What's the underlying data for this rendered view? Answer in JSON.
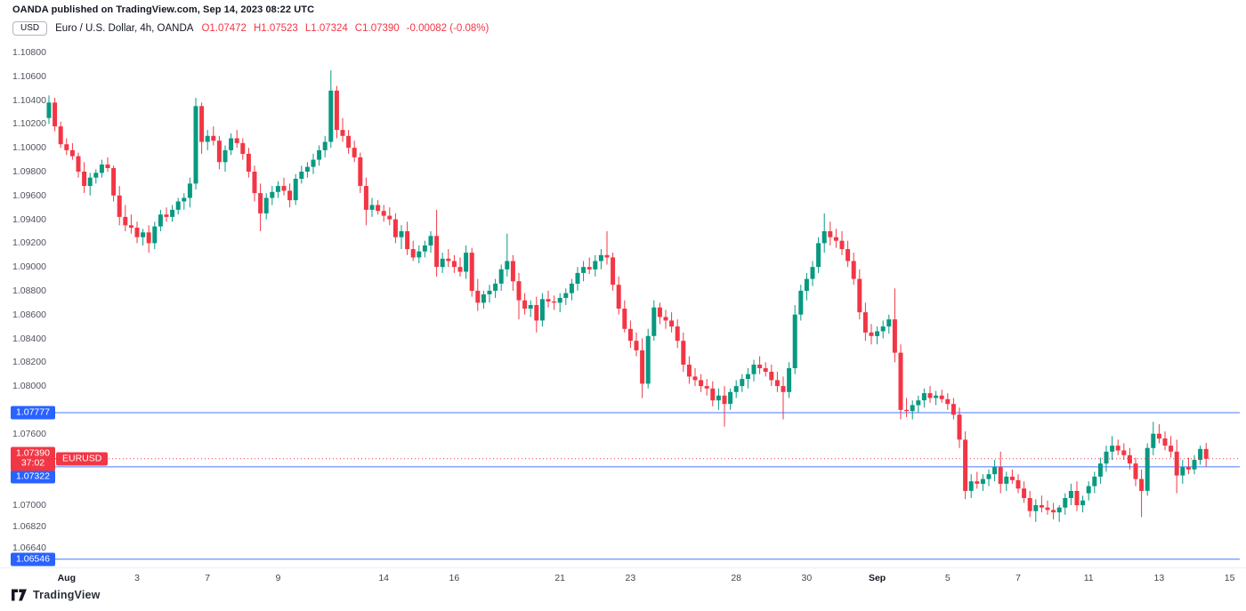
{
  "header": {
    "attribution": "OANDA published on TradingView.com, Sep 14, 2023 08:22 UTC",
    "currency": "USD",
    "legend": {
      "title": "Euro / U.S. Dollar, 4h, OANDA",
      "open": "O1.07472",
      "high": "H1.07523",
      "low": "L1.07324",
      "close": "C1.07390",
      "change": "-0.00082 (-0.08%)"
    }
  },
  "price_scale": {
    "ticks": [
      "1.10800",
      "1.10600",
      "1.10400",
      "1.10200",
      "1.10000",
      "1.09800",
      "1.09600",
      "1.09400",
      "1.09200",
      "1.09000",
      "1.08800",
      "1.08600",
      "1.08400",
      "1.08200",
      "1.08000",
      "1.07600",
      "1.07000",
      "1.06820",
      "1.06640"
    ],
    "badges": [
      {
        "text": "1.07777",
        "price": 1.07777,
        "color": "#2962FF"
      },
      {
        "text": "1.07322",
        "price": 1.07322,
        "color": "#2962FF"
      },
      {
        "text": "1.06546",
        "price": 1.06546,
        "color": "#2962FF"
      }
    ],
    "current_price": {
      "text": "1.07390",
      "price": 1.0739,
      "countdown": "37:02",
      "symbol_tag": "EURUSD",
      "color": "#F23645"
    }
  },
  "time_scale": {
    "labels": [
      {
        "text": "Aug",
        "i": 3
      },
      {
        "text": "3",
        "i": 15
      },
      {
        "text": "7",
        "i": 27
      },
      {
        "text": "9",
        "i": 39
      },
      {
        "text": "14",
        "i": 57
      },
      {
        "text": "16",
        "i": 69
      },
      {
        "text": "21",
        "i": 87
      },
      {
        "text": "23",
        "i": 99
      },
      {
        "text": "28",
        "i": 117
      },
      {
        "text": "30",
        "i": 129
      },
      {
        "text": "Sep",
        "i": 141
      },
      {
        "text": "5",
        "i": 153
      },
      {
        "text": "7",
        "i": 165
      },
      {
        "text": "11",
        "i": 177
      },
      {
        "text": "13",
        "i": 189
      },
      {
        "text": "15",
        "i": 201
      }
    ]
  },
  "price_lines": [
    {
      "price": 1.07777,
      "color": "#2962FF",
      "style": "solid"
    },
    {
      "price": 1.07322,
      "color": "#2962FF",
      "style": "solid"
    },
    {
      "price": 1.06546,
      "color": "#2962FF",
      "style": "solid"
    },
    {
      "price": 1.0739,
      "color": "#F23645",
      "style": "dotted"
    }
  ],
  "chart_data": {
    "type": "candlestick",
    "symbol": "EURUSD",
    "description": "Euro / U.S. Dollar",
    "timeframe": "4h",
    "exchange": "OANDA",
    "title": "Euro / U.S. Dollar, 4h, OANDA",
    "ylim": [
      1.06403,
      1.10905
    ],
    "grid": false,
    "colors": {
      "up": "#089981",
      "down": "#F23645"
    },
    "candles": [
      [
        1.1025,
        1.1044,
        1.102,
        1.1038
      ],
      [
        1.1038,
        1.1042,
        1.1014,
        1.1018
      ],
      [
        1.1018,
        1.1022,
        1.1,
        1.1003
      ],
      [
        1.1003,
        1.1008,
        1.0994,
        1.0998
      ],
      [
        1.0998,
        1.1004,
        1.099,
        1.0993
      ],
      [
        1.0993,
        1.0996,
        1.0975,
        1.098
      ],
      [
        1.098,
        1.0988,
        1.0962,
        1.0968
      ],
      [
        1.0968,
        1.0979,
        1.096,
        1.0975
      ],
      [
        1.0975,
        1.0982,
        1.097,
        1.0979
      ],
      [
        1.0979,
        1.099,
        1.0975,
        1.0986
      ],
      [
        1.0986,
        1.0992,
        1.098,
        1.0983
      ],
      [
        1.0983,
        1.0985,
        1.0955,
        1.096
      ],
      [
        1.096,
        1.0968,
        1.0935,
        1.0942
      ],
      [
        1.0942,
        1.0952,
        1.093,
        1.0935
      ],
      [
        1.0935,
        1.0944,
        1.0928,
        1.0933
      ],
      [
        1.0933,
        1.0938,
        1.092,
        1.0925
      ],
      [
        1.0925,
        1.0932,
        1.0918,
        1.0929
      ],
      [
        1.0929,
        1.0935,
        1.0912,
        1.092
      ],
      [
        1.092,
        1.0938,
        1.0915,
        1.0934
      ],
      [
        1.0934,
        1.0948,
        1.093,
        1.0944
      ],
      [
        1.0944,
        1.095,
        1.0938,
        1.0942
      ],
      [
        1.0942,
        1.0952,
        1.0938,
        1.0948
      ],
      [
        1.0948,
        1.0958,
        1.0944,
        1.0955
      ],
      [
        1.0955,
        1.0962,
        1.0948,
        1.0958
      ],
      [
        1.0958,
        1.0975,
        1.095,
        1.097
      ],
      [
        1.097,
        1.1042,
        1.0965,
        1.1035
      ],
      [
        1.1035,
        1.1038,
        1.0995,
        1.1005
      ],
      [
        1.1005,
        1.1015,
        1.0998,
        1.101
      ],
      [
        1.101,
        1.1018,
        1.1002,
        1.1006
      ],
      [
        1.1006,
        1.101,
        1.0982,
        1.0988
      ],
      [
        1.0988,
        1.1002,
        1.098,
        1.0998
      ],
      [
        1.0998,
        1.1012,
        1.0994,
        1.1008
      ],
      [
        1.1008,
        1.1015,
        1.1,
        1.1004
      ],
      [
        1.1004,
        1.1008,
        1.099,
        1.0995
      ],
      [
        1.0995,
        1.1,
        1.0975,
        1.098
      ],
      [
        1.098,
        1.0985,
        1.0955,
        1.0962
      ],
      [
        1.0962,
        1.097,
        1.093,
        1.0945
      ],
      [
        1.0945,
        1.0962,
        1.094,
        1.0958
      ],
      [
        1.0958,
        1.0968,
        1.0952,
        1.0963
      ],
      [
        1.0963,
        1.0972,
        1.0958,
        1.0968
      ],
      [
        1.0968,
        1.0975,
        1.096,
        1.0964
      ],
      [
        1.0964,
        1.097,
        1.095,
        1.0956
      ],
      [
        1.0956,
        1.0978,
        1.0952,
        1.0974
      ],
      [
        1.0974,
        1.0985,
        1.097,
        1.098
      ],
      [
        1.098,
        1.0988,
        1.0975,
        1.0984
      ],
      [
        1.0984,
        1.0995,
        1.0978,
        1.099
      ],
      [
        1.099,
        1.1002,
        1.0985,
        1.0998
      ],
      [
        1.0998,
        1.101,
        1.0992,
        1.1005
      ],
      [
        1.1005,
        1.1065,
        1.1,
        1.1048
      ],
      [
        1.1048,
        1.1052,
        1.1008,
        1.1015
      ],
      [
        1.1015,
        1.1025,
        1.1005,
        1.101
      ],
      [
        1.101,
        1.1015,
        1.0995,
        1.1
      ],
      [
        1.1,
        1.1006,
        1.0988,
        1.0992
      ],
      [
        1.0992,
        1.0996,
        1.0962,
        1.0968
      ],
      [
        1.0968,
        1.0975,
        1.0935,
        1.0948
      ],
      [
        1.0948,
        1.0958,
        1.0942,
        1.0952
      ],
      [
        1.0952,
        1.0956,
        1.0944,
        1.0947
      ],
      [
        1.0947,
        1.0952,
        1.0938,
        1.0943
      ],
      [
        1.0943,
        1.095,
        1.0935,
        1.094
      ],
      [
        1.094,
        1.0945,
        1.092,
        1.0925
      ],
      [
        1.0925,
        1.0935,
        1.0915,
        1.093
      ],
      [
        1.093,
        1.0938,
        1.091,
        1.0915
      ],
      [
        1.0915,
        1.0922,
        1.0905,
        1.0908
      ],
      [
        1.0908,
        1.0918,
        1.0903,
        1.0913
      ],
      [
        1.0913,
        1.0922,
        1.0908,
        1.0918
      ],
      [
        1.0918,
        1.093,
        1.0912,
        1.0926
      ],
      [
        1.0926,
        1.0948,
        1.0892,
        1.09
      ],
      [
        1.09,
        1.0912,
        1.0895,
        1.0907
      ],
      [
        1.0907,
        1.0915,
        1.09,
        1.0905
      ],
      [
        1.0905,
        1.091,
        1.0895,
        1.09
      ],
      [
        1.09,
        1.0908,
        1.0892,
        1.0896
      ],
      [
        1.0896,
        1.0918,
        1.089,
        1.0912
      ],
      [
        1.0912,
        1.0916,
        1.0875,
        1.088
      ],
      [
        1.088,
        1.089,
        1.0863,
        1.087
      ],
      [
        1.087,
        1.088,
        1.0865,
        1.0877
      ],
      [
        1.0877,
        1.0885,
        1.087,
        1.088
      ],
      [
        1.088,
        1.089,
        1.0874,
        1.0886
      ],
      [
        1.0886,
        1.0902,
        1.088,
        1.0898
      ],
      [
        1.0898,
        1.0928,
        1.0892,
        1.0905
      ],
      [
        1.0905,
        1.091,
        1.088,
        1.0888
      ],
      [
        1.0888,
        1.0895,
        1.0856,
        1.0872
      ],
      [
        1.0872,
        1.0878,
        1.086,
        1.0865
      ],
      [
        1.0865,
        1.0872,
        1.0858,
        1.0868
      ],
      [
        1.0868,
        1.0875,
        1.0845,
        1.0855
      ],
      [
        1.0855,
        1.0878,
        1.085,
        1.0873
      ],
      [
        1.0873,
        1.088,
        1.0866,
        1.0871
      ],
      [
        1.0871,
        1.0876,
        1.0864,
        1.087
      ],
      [
        1.087,
        1.0878,
        1.0862,
        1.0874
      ],
      [
        1.0874,
        1.0882,
        1.0868,
        1.0878
      ],
      [
        1.0878,
        1.089,
        1.0872,
        1.0886
      ],
      [
        1.0886,
        1.09,
        1.088,
        1.0895
      ],
      [
        1.0895,
        1.0905,
        1.0888,
        1.09
      ],
      [
        1.09,
        1.0908,
        1.0894,
        1.0898
      ],
      [
        1.0898,
        1.091,
        1.0892,
        1.0905
      ],
      [
        1.0905,
        1.0915,
        1.0898,
        1.091
      ],
      [
        1.091,
        1.093,
        1.0902,
        1.0908
      ],
      [
        1.0908,
        1.0912,
        1.088,
        1.0885
      ],
      [
        1.0885,
        1.0892,
        1.086,
        1.0865
      ],
      [
        1.0865,
        1.0872,
        1.0845,
        1.0848
      ],
      [
        1.0848,
        1.0855,
        1.0832,
        1.0838
      ],
      [
        1.0838,
        1.0845,
        1.0825,
        1.083
      ],
      [
        1.083,
        1.084,
        1.079,
        1.0802
      ],
      [
        1.0802,
        1.0848,
        1.0798,
        1.0842
      ],
      [
        1.0842,
        1.0872,
        1.0838,
        1.0866
      ],
      [
        1.0866,
        1.087,
        1.0852,
        1.0858
      ],
      [
        1.0858,
        1.0864,
        1.0848,
        1.0855
      ],
      [
        1.0855,
        1.0862,
        1.0845,
        1.085
      ],
      [
        1.085,
        1.0856,
        1.0832,
        1.0838
      ],
      [
        1.0838,
        1.0845,
        1.0812,
        1.0818
      ],
      [
        1.0818,
        1.0825,
        1.0802,
        1.0808
      ],
      [
        1.0808,
        1.0815,
        1.08,
        1.0805
      ],
      [
        1.0805,
        1.081,
        1.0795,
        1.08
      ],
      [
        1.08,
        1.0806,
        1.0792,
        1.0798
      ],
      [
        1.0798,
        1.0804,
        1.0783,
        1.0788
      ],
      [
        1.0788,
        1.0798,
        1.078,
        1.0792
      ],
      [
        1.0792,
        1.08,
        1.0766,
        1.0785
      ],
      [
        1.0785,
        1.0798,
        1.078,
        1.0795
      ],
      [
        1.0795,
        1.0805,
        1.079,
        1.08
      ],
      [
        1.08,
        1.081,
        1.0795,
        1.0806
      ],
      [
        1.0806,
        1.0815,
        1.0798,
        1.081
      ],
      [
        1.081,
        1.0822,
        1.0804,
        1.0818
      ],
      [
        1.0818,
        1.0825,
        1.081,
        1.0815
      ],
      [
        1.0815,
        1.082,
        1.0808,
        1.0812
      ],
      [
        1.0812,
        1.0818,
        1.08,
        1.0805
      ],
      [
        1.0805,
        1.0812,
        1.0795,
        1.08
      ],
      [
        1.08,
        1.0808,
        1.0772,
        1.0795
      ],
      [
        1.0795,
        1.082,
        1.079,
        1.0815
      ],
      [
        1.0815,
        1.0868,
        1.081,
        1.086
      ],
      [
        1.086,
        1.0885,
        1.0855,
        1.088
      ],
      [
        1.088,
        1.0895,
        1.0872,
        1.089
      ],
      [
        1.089,
        1.0905,
        1.0884,
        1.09
      ],
      [
        1.09,
        1.0925,
        1.0895,
        1.092
      ],
      [
        1.092,
        1.0945,
        1.0912,
        1.093
      ],
      [
        1.093,
        1.0938,
        1.0918,
        1.0925
      ],
      [
        1.0925,
        1.0932,
        1.0916,
        1.0922
      ],
      [
        1.0922,
        1.093,
        1.091,
        1.0915
      ],
      [
        1.0915,
        1.0922,
        1.09,
        1.0905
      ],
      [
        1.0905,
        1.0912,
        1.0885,
        1.089
      ],
      [
        1.089,
        1.0898,
        1.0856,
        1.0862
      ],
      [
        1.0862,
        1.087,
        1.0838,
        1.0845
      ],
      [
        1.0845,
        1.0852,
        1.0835,
        1.0842
      ],
      [
        1.0842,
        1.085,
        1.0835,
        1.0846
      ],
      [
        1.0846,
        1.0855,
        1.084,
        1.085
      ],
      [
        1.085,
        1.086,
        1.0844,
        1.0856
      ],
      [
        1.0856,
        1.0882,
        1.082,
        1.0828
      ],
      [
        1.0828,
        1.0835,
        1.0772,
        1.078
      ],
      [
        1.078,
        1.079,
        1.0774,
        1.0779
      ],
      [
        1.0779,
        1.0788,
        1.0772,
        1.0784
      ],
      [
        1.0784,
        1.0792,
        1.0778,
        1.0788
      ],
      [
        1.0788,
        1.0798,
        1.0782,
        1.0794
      ],
      [
        1.0794,
        1.08,
        1.0786,
        1.079
      ],
      [
        1.079,
        1.0796,
        1.0784,
        1.0792
      ],
      [
        1.0792,
        1.0797,
        1.0786,
        1.0789
      ],
      [
        1.0789,
        1.0794,
        1.078,
        1.0785
      ],
      [
        1.0785,
        1.079,
        1.0772,
        1.0776
      ],
      [
        1.0776,
        1.0782,
        1.0748,
        1.0755
      ],
      [
        1.0755,
        1.0762,
        1.0705,
        1.0712
      ],
      [
        1.0712,
        1.0726,
        1.0706,
        1.072
      ],
      [
        1.072,
        1.0728,
        1.0714,
        1.0718
      ],
      [
        1.0718,
        1.0726,
        1.0712,
        1.0722
      ],
      [
        1.0722,
        1.073,
        1.0716,
        1.0726
      ],
      [
        1.0726,
        1.0738,
        1.072,
        1.0732
      ],
      [
        1.0732,
        1.0745,
        1.071,
        1.0718
      ],
      [
        1.0718,
        1.0728,
        1.0712,
        1.0724
      ],
      [
        1.0724,
        1.073,
        1.0718,
        1.0721
      ],
      [
        1.0721,
        1.0726,
        1.071,
        1.0714
      ],
      [
        1.0714,
        1.072,
        1.0702,
        1.0706
      ],
      [
        1.0706,
        1.0712,
        1.069,
        1.0695
      ],
      [
        1.0695,
        1.0705,
        1.0686,
        1.07
      ],
      [
        1.07,
        1.0708,
        1.0694,
        1.0698
      ],
      [
        1.0698,
        1.0704,
        1.0692,
        1.0696
      ],
      [
        1.0696,
        1.0702,
        1.0688,
        1.0694
      ],
      [
        1.0694,
        1.07,
        1.0686,
        1.0698
      ],
      [
        1.0698,
        1.071,
        1.0692,
        1.0706
      ],
      [
        1.0706,
        1.0718,
        1.07,
        1.0712
      ],
      [
        1.0712,
        1.072,
        1.0695,
        1.07
      ],
      [
        1.07,
        1.0708,
        1.0694,
        1.0704
      ],
      [
        1.071,
        1.072,
        1.0704,
        1.0716
      ],
      [
        1.0716,
        1.0728,
        1.071,
        1.0724
      ],
      [
        1.0724,
        1.074,
        1.0718,
        1.0735
      ],
      [
        1.0735,
        1.075,
        1.0728,
        1.0745
      ],
      [
        1.0745,
        1.0758,
        1.0738,
        1.075
      ],
      [
        1.075,
        1.0755,
        1.0742,
        1.0746
      ],
      [
        1.0746,
        1.0752,
        1.0738,
        1.0742
      ],
      [
        1.0742,
        1.0748,
        1.073,
        1.0735
      ],
      [
        1.0735,
        1.074,
        1.0716,
        1.0722
      ],
      [
        1.0722,
        1.073,
        1.069,
        1.0712
      ],
      [
        1.0712,
        1.0752,
        1.0708,
        1.0748
      ],
      [
        1.0748,
        1.077,
        1.0742,
        1.076
      ],
      [
        1.076,
        1.0768,
        1.0752,
        1.0756
      ],
      [
        1.0756,
        1.0762,
        1.0746,
        1.075
      ],
      [
        1.075,
        1.0758,
        1.074,
        1.0745
      ],
      [
        1.0745,
        1.0755,
        1.071,
        1.0725
      ],
      [
        1.0725,
        1.0738,
        1.0718,
        1.0732
      ],
      [
        1.0732,
        1.074,
        1.0726,
        1.073
      ],
      [
        1.073,
        1.0742,
        1.0726,
        1.0738
      ],
      [
        1.0738,
        1.075,
        1.0734,
        1.07472
      ],
      [
        1.07472,
        1.07523,
        1.07324,
        1.0739
      ]
    ]
  },
  "footer": {
    "brand": "TradingView"
  }
}
